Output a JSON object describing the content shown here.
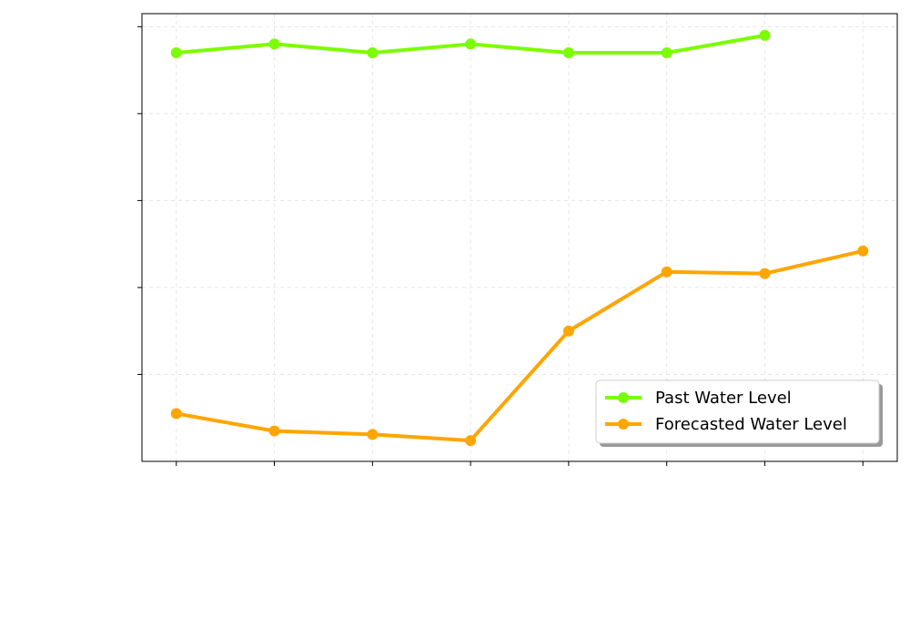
{
  "chart_data": {
    "type": "line",
    "title": "",
    "xlabel": "",
    "ylabel": "",
    "x": [
      1,
      2,
      3,
      4,
      5,
      6,
      7,
      8
    ],
    "xlim": [
      0.65,
      8.35
    ],
    "ylim": [
      0.0,
      5.15
    ],
    "yticks": [
      1,
      2,
      3,
      4,
      5
    ],
    "grid": true,
    "legend_position": "lower-right",
    "series": [
      {
        "name": "Past Water Level",
        "color": "#7cfc00",
        "x": [
          1,
          2,
          3,
          4,
          5,
          6,
          7
        ],
        "values": [
          4.7,
          4.8,
          4.7,
          4.8,
          4.7,
          4.7,
          4.9
        ]
      },
      {
        "name": "Forecasted Water Level",
        "color": "#ffa500",
        "x": [
          1,
          2,
          3,
          4,
          5,
          6,
          7,
          8
        ],
        "values": [
          0.55,
          0.35,
          0.31,
          0.24,
          1.5,
          2.18,
          2.16,
          2.42
        ]
      }
    ]
  }
}
